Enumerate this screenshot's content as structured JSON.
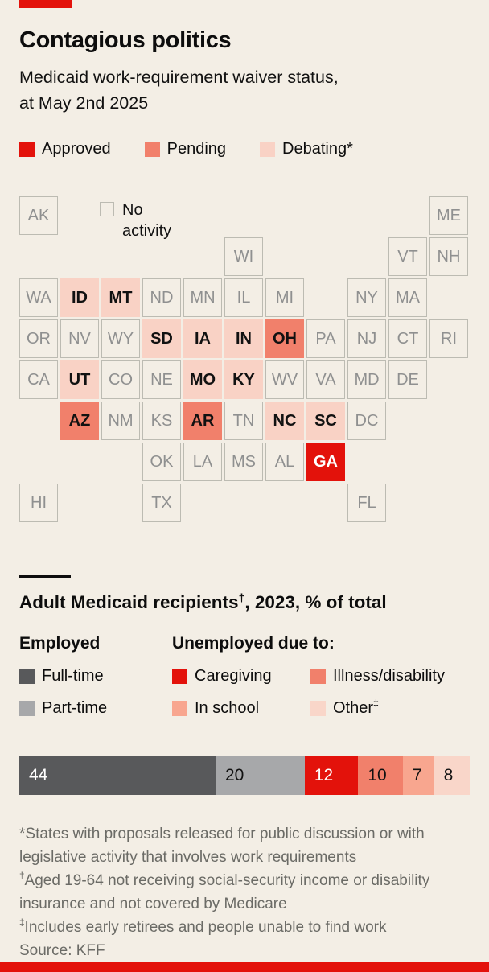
{
  "header": {
    "title": "Contagious politics",
    "subtitle_line1": "Medicaid work-requirement waiver status,",
    "subtitle_line2": "at May 2nd 2025"
  },
  "map_legend": {
    "approved": "Approved",
    "pending": "Pending",
    "debating": "Debating*",
    "no_activity": "No activity"
  },
  "bar_section": {
    "title_pre": "Adult Medicaid recipients",
    "title_sup": "†",
    "title_post": ", 2023, % of total"
  },
  "bar_legend": {
    "employed_header": "Employed",
    "unemployed_header": "Unemployed due to:",
    "full_time": "Full-time",
    "part_time": "Part-time",
    "caregiving": "Caregiving",
    "illness": "Illness/disability",
    "in_school": "In school",
    "other": "Other",
    "other_sup": "‡"
  },
  "footnotes": [
    {
      "sup": "",
      "text": "*States with proposals released for public discussion or with legislative activity that involves work requirements"
    },
    {
      "sup": "†",
      "text": "Aged 19-64 not receiving social-security income or disability insurance and not covered by Medicare"
    },
    {
      "sup": "‡",
      "text": "Includes early retirees and people unable to find work"
    },
    {
      "sup": "",
      "text": "Source: KFF"
    }
  ],
  "chart_data": [
    {
      "type": "heatmap",
      "title": "Medicaid work-requirement waiver status, at May 2nd 2025",
      "legend": [
        "Approved",
        "Pending",
        "Debating*",
        "No activity"
      ],
      "status_colors": {
        "approved": "#e3120b",
        "pending": "#f1806b",
        "debating": "#f9d2c5",
        "no_activity": "transparent"
      },
      "approved_states": [
        "GA"
      ],
      "pending_states": [
        "OH",
        "AZ",
        "AR"
      ],
      "debating_states": [
        "ID",
        "MT",
        "SD",
        "IA",
        "IN",
        "UT",
        "MO",
        "KY",
        "NC",
        "SC"
      ],
      "tiles": [
        {
          "abbr": "AK",
          "col": 1,
          "row": 1,
          "status": "no_activity"
        },
        {
          "abbr": "ME",
          "col": 11,
          "row": 1,
          "status": "no_activity"
        },
        {
          "abbr": "WI",
          "col": 6,
          "row": 2,
          "status": "no_activity"
        },
        {
          "abbr": "VT",
          "col": 10,
          "row": 2,
          "status": "no_activity"
        },
        {
          "abbr": "NH",
          "col": 11,
          "row": 2,
          "status": "no_activity"
        },
        {
          "abbr": "WA",
          "col": 1,
          "row": 3,
          "status": "no_activity"
        },
        {
          "abbr": "ID",
          "col": 2,
          "row": 3,
          "status": "debating"
        },
        {
          "abbr": "MT",
          "col": 3,
          "row": 3,
          "status": "debating"
        },
        {
          "abbr": "ND",
          "col": 4,
          "row": 3,
          "status": "no_activity"
        },
        {
          "abbr": "MN",
          "col": 5,
          "row": 3,
          "status": "no_activity"
        },
        {
          "abbr": "IL",
          "col": 6,
          "row": 3,
          "status": "no_activity"
        },
        {
          "abbr": "MI",
          "col": 7,
          "row": 3,
          "status": "no_activity"
        },
        {
          "abbr": "NY",
          "col": 9,
          "row": 3,
          "status": "no_activity"
        },
        {
          "abbr": "MA",
          "col": 10,
          "row": 3,
          "status": "no_activity"
        },
        {
          "abbr": "OR",
          "col": 1,
          "row": 4,
          "status": "no_activity"
        },
        {
          "abbr": "NV",
          "col": 2,
          "row": 4,
          "status": "no_activity"
        },
        {
          "abbr": "WY",
          "col": 3,
          "row": 4,
          "status": "no_activity"
        },
        {
          "abbr": "SD",
          "col": 4,
          "row": 4,
          "status": "debating"
        },
        {
          "abbr": "IA",
          "col": 5,
          "row": 4,
          "status": "debating"
        },
        {
          "abbr": "IN",
          "col": 6,
          "row": 4,
          "status": "debating"
        },
        {
          "abbr": "OH",
          "col": 7,
          "row": 4,
          "status": "pending"
        },
        {
          "abbr": "PA",
          "col": 8,
          "row": 4,
          "status": "no_activity"
        },
        {
          "abbr": "NJ",
          "col": 9,
          "row": 4,
          "status": "no_activity"
        },
        {
          "abbr": "CT",
          "col": 10,
          "row": 4,
          "status": "no_activity"
        },
        {
          "abbr": "RI",
          "col": 11,
          "row": 4,
          "status": "no_activity"
        },
        {
          "abbr": "CA",
          "col": 1,
          "row": 5,
          "status": "no_activity"
        },
        {
          "abbr": "UT",
          "col": 2,
          "row": 5,
          "status": "debating"
        },
        {
          "abbr": "CO",
          "col": 3,
          "row": 5,
          "status": "no_activity"
        },
        {
          "abbr": "NE",
          "col": 4,
          "row": 5,
          "status": "no_activity"
        },
        {
          "abbr": "MO",
          "col": 5,
          "row": 5,
          "status": "debating"
        },
        {
          "abbr": "KY",
          "col": 6,
          "row": 5,
          "status": "debating"
        },
        {
          "abbr": "WV",
          "col": 7,
          "row": 5,
          "status": "no_activity"
        },
        {
          "abbr": "VA",
          "col": 8,
          "row": 5,
          "status": "no_activity"
        },
        {
          "abbr": "MD",
          "col": 9,
          "row": 5,
          "status": "no_activity"
        },
        {
          "abbr": "DE",
          "col": 10,
          "row": 5,
          "status": "no_activity"
        },
        {
          "abbr": "AZ",
          "col": 2,
          "row": 6,
          "status": "pending"
        },
        {
          "abbr": "NM",
          "col": 3,
          "row": 6,
          "status": "no_activity"
        },
        {
          "abbr": "KS",
          "col": 4,
          "row": 6,
          "status": "no_activity"
        },
        {
          "abbr": "AR",
          "col": 5,
          "row": 6,
          "status": "pending"
        },
        {
          "abbr": "TN",
          "col": 6,
          "row": 6,
          "status": "no_activity"
        },
        {
          "abbr": "NC",
          "col": 7,
          "row": 6,
          "status": "debating"
        },
        {
          "abbr": "SC",
          "col": 8,
          "row": 6,
          "status": "debating"
        },
        {
          "abbr": "DC",
          "col": 9,
          "row": 6,
          "status": "no_activity"
        },
        {
          "abbr": "OK",
          "col": 4,
          "row": 7,
          "status": "no_activity"
        },
        {
          "abbr": "LA",
          "col": 5,
          "row": 7,
          "status": "no_activity"
        },
        {
          "abbr": "MS",
          "col": 6,
          "row": 7,
          "status": "no_activity"
        },
        {
          "abbr": "AL",
          "col": 7,
          "row": 7,
          "status": "no_activity"
        },
        {
          "abbr": "GA",
          "col": 8,
          "row": 7,
          "status": "approved"
        },
        {
          "abbr": "HI",
          "col": 1,
          "row": 8,
          "status": "no_activity"
        },
        {
          "abbr": "TX",
          "col": 4,
          "row": 8,
          "status": "no_activity"
        },
        {
          "abbr": "FL",
          "col": 9,
          "row": 8,
          "status": "no_activity"
        }
      ]
    },
    {
      "type": "bar",
      "stacked": true,
      "orientation": "horizontal",
      "title": "Adult Medicaid recipients†, 2023, % of total",
      "categories": [
        "Full-time",
        "Part-time",
        "Caregiving",
        "Illness/disability",
        "In school",
        "Other‡"
      ],
      "values": [
        44,
        20,
        12,
        10,
        7,
        8
      ],
      "colors": [
        "#58595b",
        "#a7a8aa",
        "#e3120b",
        "#f1806b",
        "#f8a68f",
        "#f9d6c9"
      ],
      "label_colors": [
        "#ffffff",
        "#111111",
        "#ffffff",
        "#111111",
        "#111111",
        "#111111"
      ]
    }
  ]
}
